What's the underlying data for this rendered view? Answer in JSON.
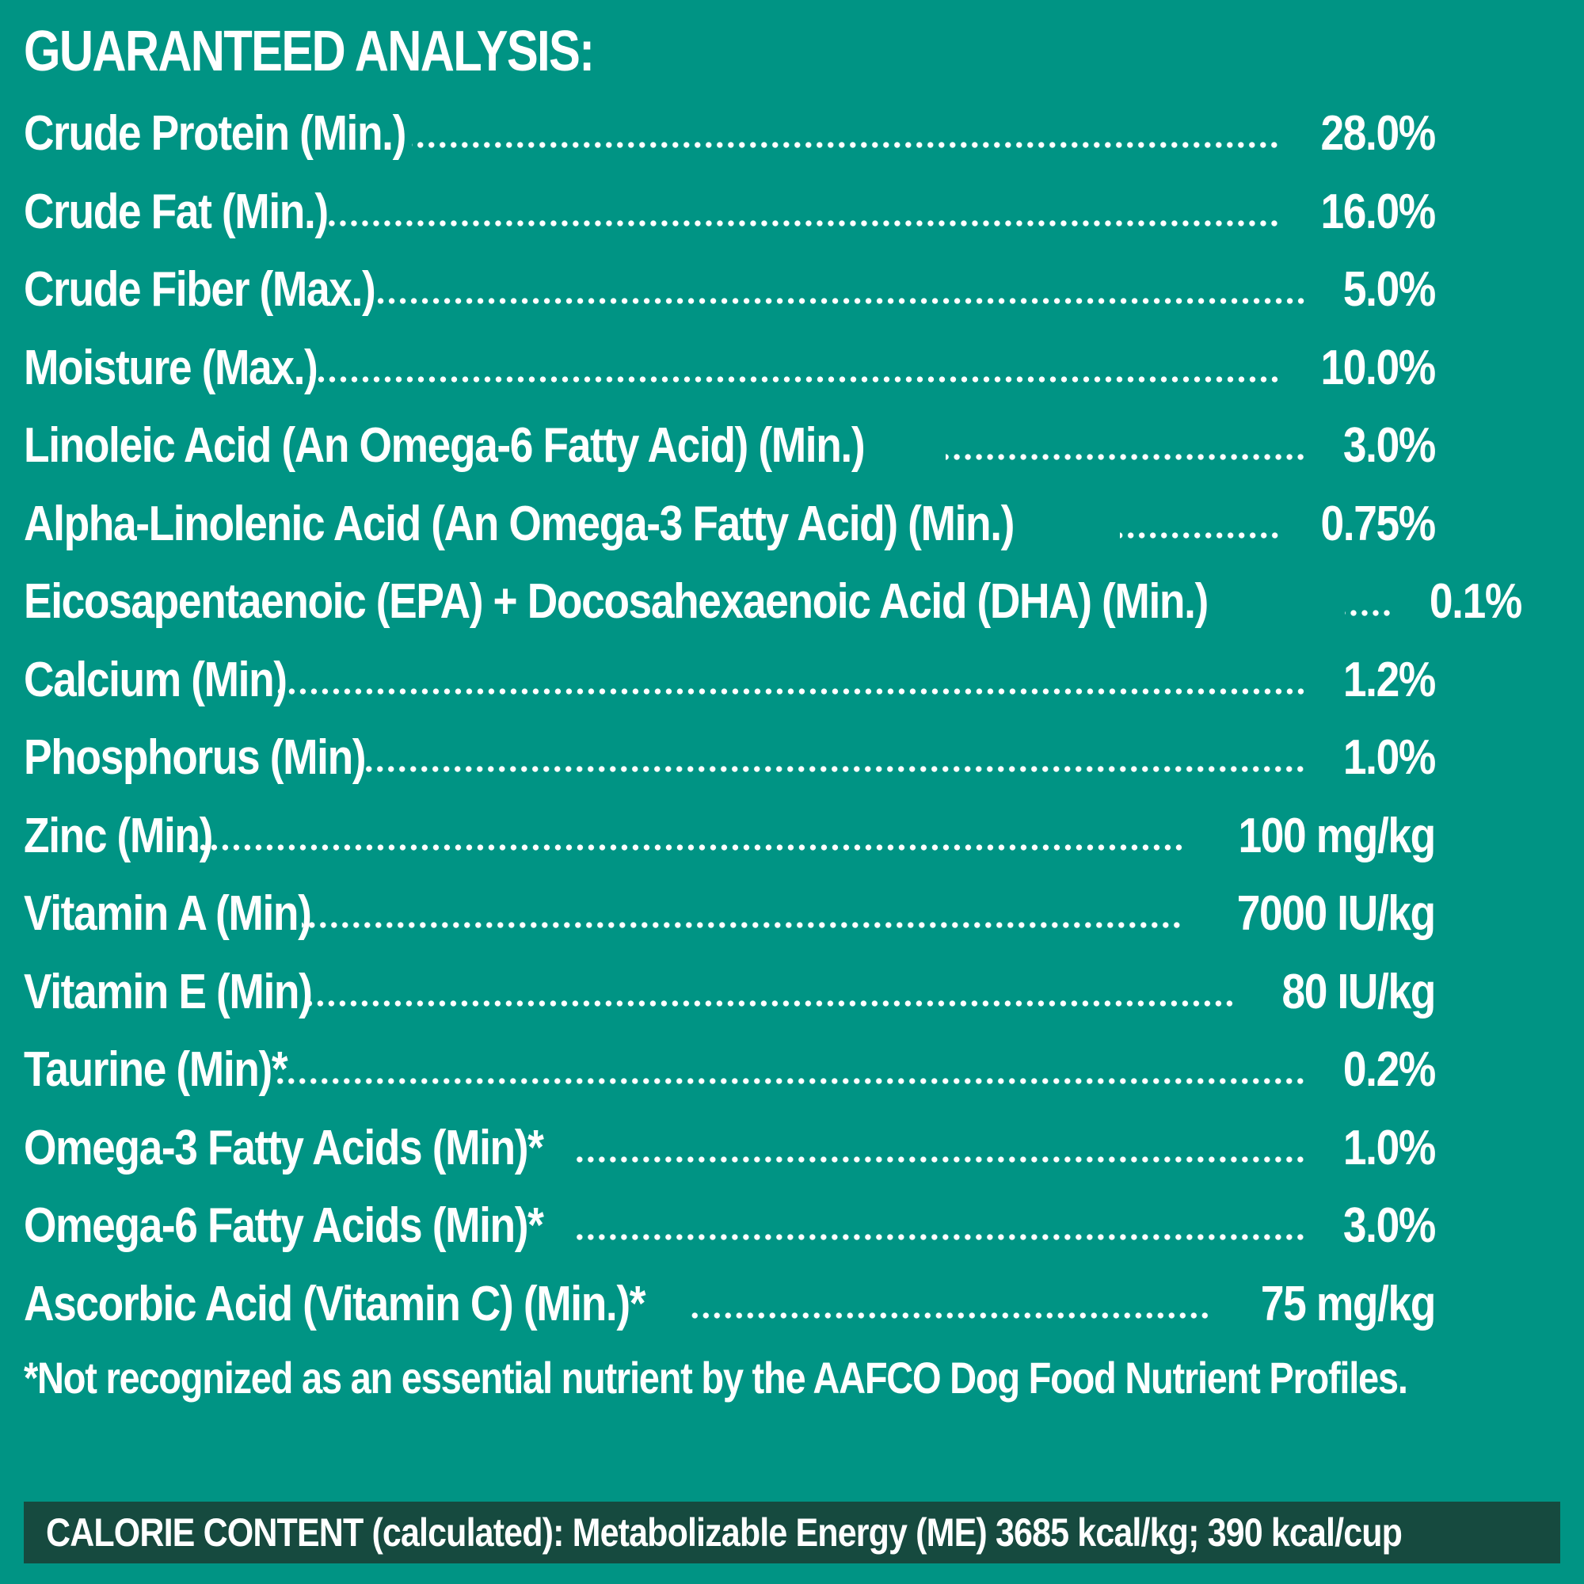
{
  "title": "GUARANTEED ANALYSIS:",
  "rows": [
    {
      "label": "Crude Protein (Min.)",
      "value": "28.0%"
    },
    {
      "label": "Crude Fat (Min.)",
      "value": "16.0%"
    },
    {
      "label": "Crude Fiber (Max.)",
      "value": "5.0%"
    },
    {
      "label": "Moisture (Max.)",
      "value": "10.0%"
    },
    {
      "label": "Linoleic Acid (An Omega-6 Fatty Acid) (Min.)",
      "value": "3.0%"
    },
    {
      "label": "Alpha-Linolenic Acid  (An Omega-3 Fatty Acid) (Min.)",
      "value": "0.75%"
    },
    {
      "label": "Eicosapentaenoic (EPA) + Docosahexaenoic Acid (DHA) (Min.)",
      "value": "0.1%"
    },
    {
      "label": "Calcium (Min)",
      "value": "1.2%"
    },
    {
      "label": "Phosphorus (Min)",
      "value": "1.0%"
    },
    {
      "label": "Zinc (Min)",
      "value": "100 mg/kg"
    },
    {
      "label": "Vitamin A (Min)",
      "value": "7000 IU/kg"
    },
    {
      "label": "Vitamin E (Min)",
      "value": "80 IU/kg"
    },
    {
      "label": "Taurine (Min)*",
      "value": "0.2%"
    },
    {
      "label": "Omega-3 Fatty Acids (Min)*",
      "value": "1.0%"
    },
    {
      "label": "Omega-6 Fatty Acids (Min)*",
      "value": "3.0%"
    },
    {
      "label": "Ascorbic Acid (Vitamin C) (Min.)*",
      "value": "75 mg/kg"
    }
  ],
  "footnote": "*Not recognized as an essential nutrient by the AAFCO Dog Food Nutrient Profiles.",
  "calorie_content": "CALORIE CONTENT (calculated): Metabolizable Energy (ME) 3685 kcal/kg;  390 kcal/cup",
  "colors": {
    "background": "#009484",
    "calorie_bar": "#164a3f",
    "text": "#ffffff"
  }
}
